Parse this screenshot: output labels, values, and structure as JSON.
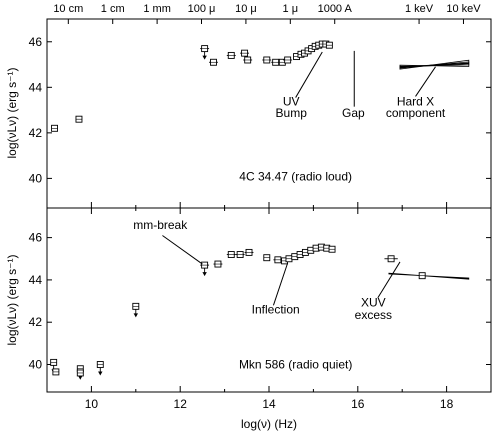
{
  "chart_data": {
    "type": "scatter",
    "xlabel": "log(ν) (Hz)",
    "ylabel": "log(νLν) (erg s⁻¹)",
    "xlim": [
      9.0,
      19.0
    ],
    "x_ticks": [
      10,
      12,
      14,
      16,
      18
    ],
    "top_axis_labels": [
      {
        "text": "10 cm",
        "x": 9.48
      },
      {
        "text": "1 cm",
        "x": 10.48
      },
      {
        "text": "1 mm",
        "x": 11.48
      },
      {
        "text": "100 μ",
        "x": 12.48
      },
      {
        "text": "10 μ",
        "x": 13.48
      },
      {
        "text": "1 μ",
        "x": 14.48
      },
      {
        "text": "1000 A",
        "x": 15.48
      },
      {
        "text": "1 keV",
        "x": 17.38
      },
      {
        "text": "10 keV",
        "x": 18.38
      }
    ],
    "panels": [
      {
        "name": "4C 34.47 (radio loud)",
        "ylim": [
          38.7,
          47.0
        ],
        "y_ticks": [
          40,
          42,
          44,
          46
        ],
        "points": [
          {
            "x": 9.17,
            "y": 42.2
          },
          {
            "x": 9.72,
            "y": 42.6
          },
          {
            "x": 12.55,
            "y": 45.7,
            "xerr": 0.1,
            "upper_limit": true
          },
          {
            "x": 12.75,
            "y": 45.1,
            "xerr": 0.1
          },
          {
            "x": 13.15,
            "y": 45.4,
            "xerr": 0.1
          },
          {
            "x": 13.45,
            "y": 45.5,
            "xerr": 0.1
          },
          {
            "x": 13.52,
            "y": 45.2,
            "xerr": 0.1
          },
          {
            "x": 13.95,
            "y": 45.2,
            "xerr": 0.1
          },
          {
            "x": 14.15,
            "y": 45.1,
            "xerr": 0.1
          },
          {
            "x": 14.3,
            "y": 45.1,
            "xerr": 0.1
          },
          {
            "x": 14.42,
            "y": 45.2,
            "xerr": 0.1
          },
          {
            "x": 14.62,
            "y": 45.35
          },
          {
            "x": 14.72,
            "y": 45.45
          },
          {
            "x": 14.8,
            "y": 45.5
          },
          {
            "x": 14.88,
            "y": 45.6
          },
          {
            "x": 14.96,
            "y": 45.7
          },
          {
            "x": 15.04,
            "y": 45.8
          },
          {
            "x": 15.12,
            "y": 45.85
          },
          {
            "x": 15.2,
            "y": 45.9
          },
          {
            "x": 15.28,
            "y": 45.9
          },
          {
            "x": 15.36,
            "y": 45.85
          }
        ],
        "xray": {
          "x_start": 16.95,
          "x_end": 18.5,
          "anchor_x": 17.55,
          "anchor_y": 44.95
        },
        "annotations": [
          {
            "text": "UV",
            "x": 14.5,
            "y": 43.2
          },
          {
            "text": "Bump",
            "x": 14.5,
            "y": 42.7
          },
          {
            "text": "Gap",
            "x": 15.9,
            "y": 42.7
          },
          {
            "text": "Hard X",
            "x": 17.3,
            "y": 43.2
          },
          {
            "text": "component",
            "x": 17.3,
            "y": 42.7
          },
          {
            "text": "4C 34.47 (radio loud)",
            "x": 14.6,
            "y": 39.9
          }
        ]
      },
      {
        "name": "Mkn 586 (radio quiet)",
        "ylim": [
          38.7,
          47.4
        ],
        "y_ticks": [
          40,
          42,
          44,
          46
        ],
        "points": [
          {
            "x": 9.15,
            "y": 40.1,
            "upper_limit": true
          },
          {
            "x": 9.2,
            "y": 39.65
          },
          {
            "x": 9.75,
            "y": 39.8,
            "upper_limit": true
          },
          {
            "x": 9.75,
            "y": 39.6
          },
          {
            "x": 10.2,
            "y": 40.0,
            "upper_limit": true
          },
          {
            "x": 11.0,
            "y": 42.75,
            "upper_limit": true
          },
          {
            "x": 12.55,
            "y": 44.7,
            "xerr": 0.1,
            "upper_limit": true
          },
          {
            "x": 12.85,
            "y": 44.75,
            "xerr": 0.1
          },
          {
            "x": 13.15,
            "y": 45.2,
            "xerr": 0.1
          },
          {
            "x": 13.35,
            "y": 45.2,
            "xerr": 0.1
          },
          {
            "x": 13.55,
            "y": 45.3,
            "xerr": 0.1
          },
          {
            "x": 13.95,
            "y": 45.05
          },
          {
            "x": 14.2,
            "y": 44.95,
            "xerr": 0.1
          },
          {
            "x": 14.35,
            "y": 44.9
          },
          {
            "x": 14.45,
            "y": 45.0
          },
          {
            "x": 14.58,
            "y": 45.1
          },
          {
            "x": 14.7,
            "y": 45.2
          },
          {
            "x": 14.82,
            "y": 45.3
          },
          {
            "x": 14.94,
            "y": 45.4
          },
          {
            "x": 15.06,
            "y": 45.5
          },
          {
            "x": 15.18,
            "y": 45.55
          },
          {
            "x": 15.3,
            "y": 45.5
          },
          {
            "x": 15.42,
            "y": 45.45
          },
          {
            "x": 16.75,
            "y": 45.0,
            "xerr": 0.15
          },
          {
            "x": 17.45,
            "y": 44.2
          }
        ],
        "xray": {
          "x_start": 16.7,
          "x_end": 18.5,
          "anchor_x": 17.45,
          "anchor_y": 44.2
        },
        "annotations": [
          {
            "text": "mm-break",
            "x": 11.55,
            "y": 46.4
          },
          {
            "text": "Inflection",
            "x": 14.15,
            "y": 42.4
          },
          {
            "text": "XUV",
            "x": 16.35,
            "y": 42.75
          },
          {
            "text": "excess",
            "x": 16.35,
            "y": 42.15
          },
          {
            "text": "Mkn 586 (radio quiet)",
            "x": 14.6,
            "y": 39.8
          }
        ]
      }
    ]
  }
}
